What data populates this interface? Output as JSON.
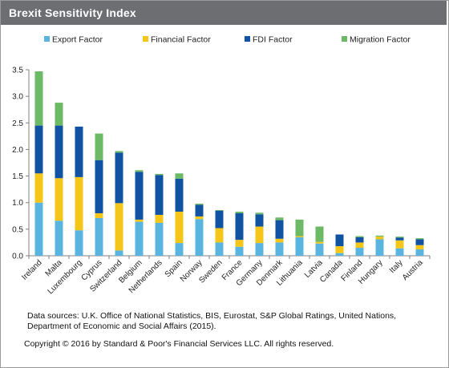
{
  "title": "Brexit Sensitivity  Index",
  "source_note": "Data sources: U.K. Office of National Statistics, BIS, Eurostat, S&P Global Ratings, United Nations, Department of Economic and Social Affairs (2015).",
  "copyright": "Copyright © 2016 by Standard & Poor's Financial Services LLC. All rights reserved.",
  "chart_data": {
    "type": "bar",
    "stacked": true,
    "categories": [
      "Ireland",
      "Malta",
      "Luxembourg",
      "Cyprus",
      "Switzerland",
      "Belgium",
      "Netherlands",
      "Spain",
      "Norway",
      "Sweden",
      "France",
      "Germany",
      "Denmark",
      "Lithuania",
      "Latvia",
      "Canada",
      "Finland",
      "Hungary",
      "Italy",
      "Austria"
    ],
    "series": [
      {
        "name": "Export Factor",
        "color": "#5ab4e0",
        "values": [
          1.0,
          0.66,
          0.48,
          0.71,
          0.1,
          0.64,
          0.62,
          0.24,
          0.69,
          0.25,
          0.17,
          0.24,
          0.25,
          0.35,
          0.23,
          0.05,
          0.15,
          0.31,
          0.14,
          0.12
        ]
      },
      {
        "name": "Financial Factor",
        "color": "#f5c518",
        "values": [
          0.55,
          0.8,
          1.0,
          0.09,
          0.89,
          0.04,
          0.15,
          0.59,
          0.05,
          0.27,
          0.13,
          0.31,
          0.07,
          0.02,
          0.03,
          0.13,
          0.1,
          0.05,
          0.15,
          0.08
        ]
      },
      {
        "name": "FDI Factor",
        "color": "#1053a3",
        "values": [
          0.9,
          0.99,
          0.95,
          1.0,
          0.95,
          0.9,
          0.75,
          0.62,
          0.22,
          0.33,
          0.5,
          0.23,
          0.35,
          0.0,
          0.0,
          0.22,
          0.1,
          0.0,
          0.05,
          0.11
        ]
      },
      {
        "name": "Migration Factor",
        "color": "#6cb966",
        "values": [
          1.02,
          0.43,
          0.0,
          0.5,
          0.03,
          0.03,
          0.02,
          0.1,
          0.02,
          0.01,
          0.03,
          0.03,
          0.05,
          0.31,
          0.29,
          0.0,
          0.02,
          0.02,
          0.02,
          0.02
        ]
      }
    ],
    "yticks": [
      "0.0",
      "0.5",
      "1.0",
      "1.5",
      "2.0",
      "2.5",
      "3.0",
      "3.5"
    ],
    "ylim": [
      0,
      3.5
    ],
    "legend_position": "top",
    "grid": false
  }
}
